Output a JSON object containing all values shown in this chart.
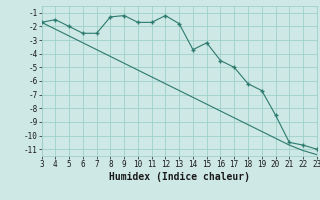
{
  "x": [
    3,
    4,
    5,
    6,
    7,
    8,
    9,
    10,
    11,
    12,
    13,
    14,
    15,
    16,
    17,
    18,
    19,
    20,
    21,
    22,
    23
  ],
  "y_curve": [
    -1.7,
    -1.5,
    -2.0,
    -2.5,
    -2.5,
    -1.3,
    -1.2,
    -1.7,
    -1.7,
    -1.2,
    -1.8,
    -3.7,
    -3.2,
    -4.5,
    -5.0,
    -6.2,
    -6.7,
    -8.5,
    -10.5,
    -10.7,
    -11.0
  ],
  "y_line": [
    -1.7,
    -2.2,
    -2.7,
    -3.2,
    -3.7,
    -4.2,
    -4.7,
    -5.2,
    -5.7,
    -6.2,
    -6.7,
    -7.2,
    -7.7,
    -8.2,
    -8.7,
    -9.2,
    -9.7,
    -10.2,
    -10.7,
    -11.1,
    -11.4
  ],
  "line_color": "#2d7a6e",
  "bg_color": "#cde8e5",
  "grid_color": "#9ecfca",
  "xlabel": "Humidex (Indice chaleur)",
  "xlim": [
    3,
    23
  ],
  "ylim": [
    -11.5,
    -0.5
  ],
  "yticks": [
    -1,
    -2,
    -3,
    -4,
    -5,
    -6,
    -7,
    -8,
    -9,
    -10,
    -11
  ],
  "xticks": [
    3,
    4,
    5,
    6,
    7,
    8,
    9,
    10,
    11,
    12,
    13,
    14,
    15,
    16,
    17,
    18,
    19,
    20,
    21,
    22,
    23
  ],
  "font_color": "#1a1a1a",
  "tick_fontsize": 5.5,
  "xlabel_fontsize": 7.0
}
